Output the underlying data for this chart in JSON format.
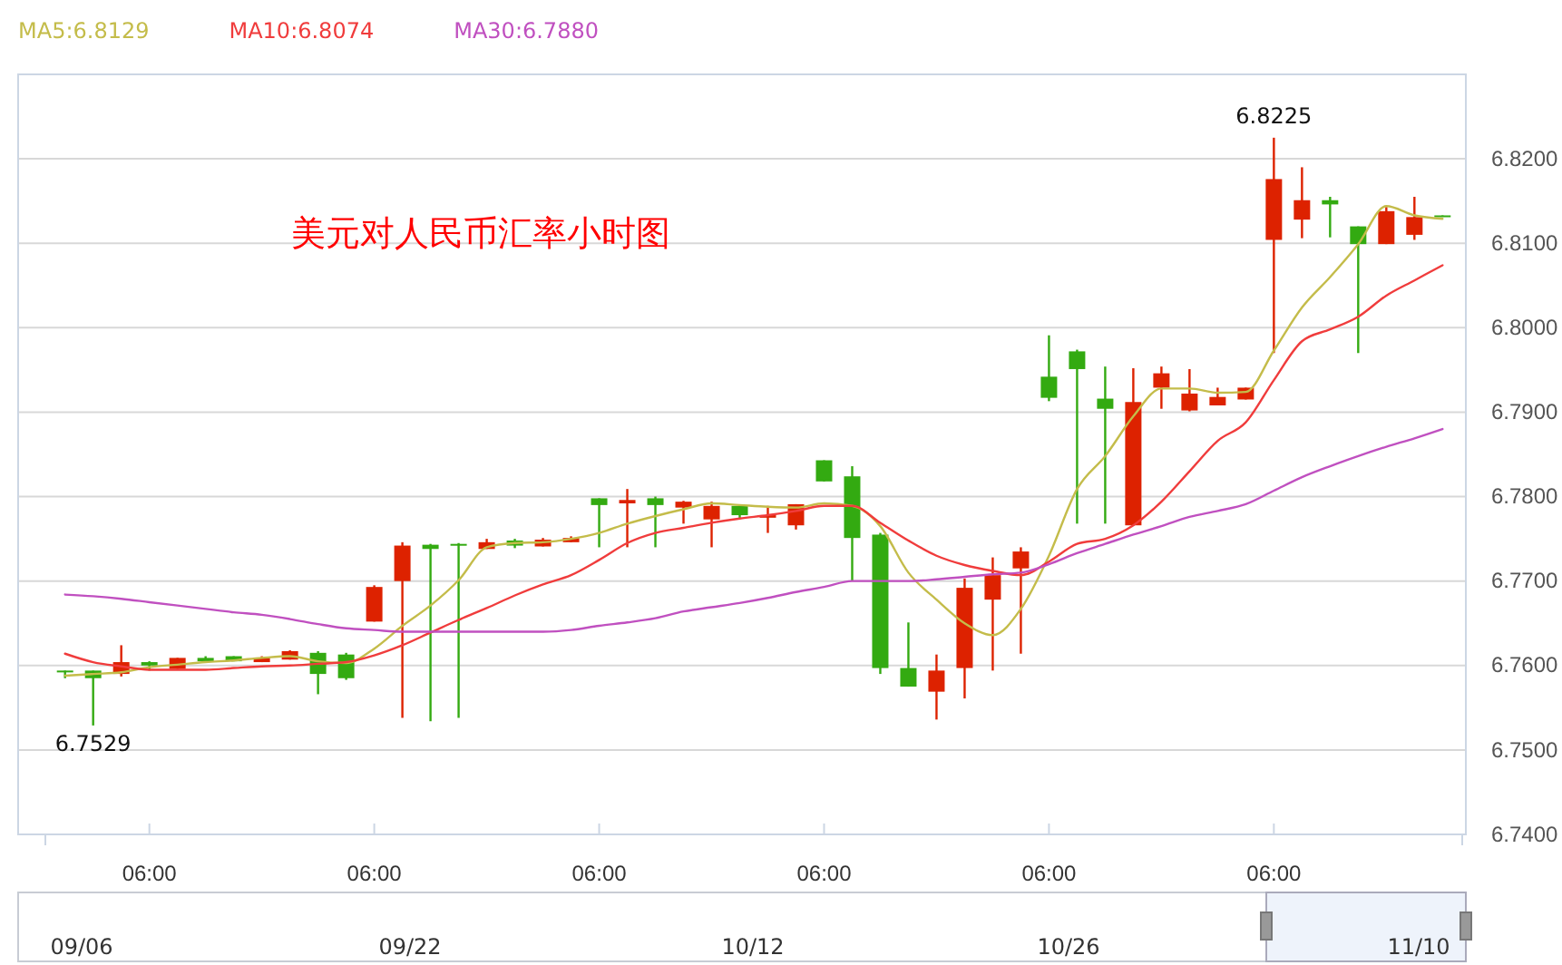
{
  "chart_data": {
    "type": "candlestick",
    "title": "美元对人民币汇率小时图",
    "categories": [
      null,
      null,
      null,
      "06:00",
      null,
      null,
      null,
      null,
      null,
      null,
      null,
      "06:00",
      null,
      null,
      null,
      null,
      null,
      null,
      null,
      "06:00",
      null,
      null,
      null,
      null,
      null,
      null,
      null,
      "06:00",
      null,
      null,
      null,
      null,
      null,
      null,
      null,
      "06:00",
      null,
      null,
      null,
      null,
      null,
      null,
      null,
      "06:00",
      null,
      null,
      null,
      null,
      null,
      null
    ],
    "ohlc": [
      [
        6.7594,
        6.7594,
        6.7585,
        6.7592
      ],
      [
        6.7594,
        6.7594,
        6.7529,
        6.7585
      ],
      [
        6.759,
        6.7624,
        6.7587,
        6.7604
      ],
      [
        6.7604,
        6.7605,
        6.7594,
        6.76
      ],
      [
        6.7596,
        6.7609,
        6.7596,
        6.7609
      ],
      [
        6.7609,
        6.7611,
        6.7603,
        6.7605
      ],
      [
        6.7611,
        6.7611,
        6.7605,
        6.7605
      ],
      [
        6.7604,
        6.7611,
        6.7604,
        6.7609
      ],
      [
        6.7607,
        6.7618,
        6.7607,
        6.7617
      ],
      [
        6.7615,
        6.7617,
        6.7566,
        6.759
      ],
      [
        6.7613,
        6.7615,
        6.7583,
        6.7585
      ],
      [
        6.7652,
        6.7695,
        6.7652,
        6.7693
      ],
      [
        6.77,
        6.7746,
        6.7538,
        6.7742
      ],
      [
        6.7743,
        6.7744,
        6.7534,
        6.7738
      ],
      [
        6.7744,
        6.7745,
        6.7538,
        6.7743
      ],
      [
        6.7738,
        6.775,
        6.7738,
        6.7746
      ],
      [
        6.7748,
        6.775,
        6.7739,
        6.7742
      ],
      [
        6.7741,
        6.7751,
        6.7741,
        6.7749
      ],
      [
        6.7746,
        6.7753,
        6.7746,
        6.7751
      ],
      [
        6.7798,
        6.7798,
        6.774,
        6.779
      ],
      [
        6.7792,
        6.7809,
        6.774,
        6.7796
      ],
      [
        6.7798,
        6.78,
        6.774,
        6.779
      ],
      [
        6.7787,
        6.7795,
        6.7768,
        6.7794
      ],
      [
        6.7773,
        6.7794,
        6.774,
        6.7789
      ],
      [
        6.7789,
        6.779,
        6.7774,
        6.7778
      ],
      [
        6.7775,
        6.7789,
        6.7757,
        6.7778
      ],
      [
        6.7766,
        6.7791,
        6.7761,
        6.7791
      ],
      [
        6.7843,
        6.7843,
        6.7818,
        6.7818
      ],
      [
        6.7824,
        6.7836,
        6.77,
        6.7751
      ],
      [
        6.7755,
        6.7757,
        6.759,
        6.7597
      ],
      [
        6.7597,
        6.7651,
        6.7575,
        6.7575
      ],
      [
        6.7569,
        6.7613,
        6.7536,
        6.7594
      ],
      [
        6.7597,
        6.7703,
        6.7561,
        6.7692
      ],
      [
        6.7678,
        6.7728,
        6.7594,
        6.7707
      ],
      [
        6.7715,
        6.774,
        6.7614,
        6.7735
      ],
      [
        6.7942,
        6.7991,
        6.7913,
        6.7917
      ],
      [
        6.7972,
        6.7974,
        6.7768,
        6.7951
      ],
      [
        6.7916,
        6.7954,
        6.7768,
        6.7904
      ],
      [
        6.7766,
        6.7952,
        6.7766,
        6.7912
      ],
      [
        6.7929,
        6.7954,
        6.7904,
        6.7946
      ],
      [
        6.7902,
        6.7951,
        6.7901,
        6.7922
      ],
      [
        6.7908,
        6.7929,
        6.7908,
        6.7918
      ],
      [
        6.7915,
        6.7929,
        6.7915,
        6.7929
      ],
      [
        6.8104,
        6.8225,
        6.797,
        6.8176
      ],
      [
        6.8128,
        6.819,
        6.8106,
        6.8151
      ],
      [
        6.8151,
        6.8155,
        6.8107,
        6.8146
      ],
      [
        6.812,
        6.812,
        6.797,
        6.8099
      ],
      [
        6.8099,
        6.8143,
        6.8099,
        6.8138
      ],
      [
        6.811,
        6.8155,
        6.8104,
        6.8131
      ],
      [
        6.8133,
        6.8133,
        6.8132,
        6.8132
      ]
    ],
    "colors": [
      "#33aa11",
      "#33aa11",
      "#dd2200",
      "#33aa11",
      "#dd2200",
      "#33aa11",
      "#33aa11",
      "#dd2200",
      "#dd2200",
      "#33aa11",
      "#33aa11",
      "#dd2200",
      "#dd2200",
      "#33aa11",
      "#33aa11",
      "#dd2200",
      "#33aa11",
      "#dd2200",
      "#dd2200",
      "#33aa11",
      "#dd2200",
      "#33aa11",
      "#dd2200",
      "#dd2200",
      "#33aa11",
      "#dd2200",
      "#dd2200",
      "#33aa11",
      "#33aa11",
      "#33aa11",
      "#33aa11",
      "#dd2200",
      "#dd2200",
      "#dd2200",
      "#dd2200",
      "#33aa11",
      "#33aa11",
      "#33aa11",
      "#dd2200",
      "#dd2200",
      "#dd2200",
      "#dd2200",
      "#dd2200",
      "#dd2200",
      "#dd2200",
      "#33aa11",
      "#33aa11",
      "#dd2200",
      "#dd2200",
      "#33aa11"
    ],
    "series": [
      {
        "type": "line",
        "name": "MA5:6.8129",
        "color": "#c4bc4a",
        "values": [
          6.7588,
          6.759,
          6.7592,
          6.7598,
          6.7601,
          6.7604,
          6.7606,
          6.7609,
          6.7611,
          6.7605,
          6.7603,
          6.762,
          6.7647,
          6.7671,
          6.7701,
          6.774,
          6.7745,
          6.7746,
          6.775,
          6.7757,
          6.7768,
          6.7777,
          6.7785,
          6.7792,
          6.779,
          6.7788,
          6.7787,
          6.7792,
          6.7789,
          6.7765,
          6.771,
          6.7678,
          6.765,
          6.7636,
          6.7667,
          6.773,
          6.7809,
          6.7848,
          6.7895,
          6.7928,
          6.7928,
          6.7923,
          6.7924,
          6.7973,
          6.8024,
          6.806,
          6.8099,
          6.8144,
          6.8133,
          6.8129
        ]
      },
      {
        "type": "line",
        "name": "MA10:6.8074",
        "color": "#f03c3c",
        "values": [
          6.7614,
          6.7604,
          6.7599,
          6.7595,
          6.7595,
          6.7595,
          6.7597,
          6.7599,
          6.76,
          6.7602,
          6.7604,
          6.7612,
          6.7624,
          6.7639,
          6.7654,
          6.7668,
          6.7683,
          6.7696,
          6.7707,
          6.7725,
          6.7745,
          6.7757,
          6.7763,
          6.7769,
          6.7774,
          6.7778,
          6.7783,
          6.7789,
          6.7789,
          6.7769,
          6.7748,
          6.773,
          6.7719,
          6.7712,
          6.7707,
          6.7723,
          6.7744,
          6.775,
          6.7766,
          6.7794,
          6.783,
          6.7866,
          6.7888,
          6.7938,
          6.7984,
          6.7998,
          6.8013,
          6.8038,
          6.8056,
          6.8074
        ]
      },
      {
        "type": "line",
        "name": "MA30:6.7880",
        "color": "#c050c0",
        "values": [
          6.7684,
          6.7682,
          6.7679,
          6.7675,
          6.7671,
          6.7667,
          6.7663,
          6.766,
          6.7655,
          6.7649,
          6.7644,
          6.7642,
          6.764,
          6.764,
          6.764,
          6.764,
          6.764,
          6.764,
          6.7642,
          6.7647,
          6.7651,
          6.7656,
          6.7664,
          6.7669,
          6.7674,
          6.768,
          6.7687,
          6.7693,
          6.77,
          6.77,
          6.77,
          6.7702,
          6.7705,
          6.7708,
          6.771,
          6.772,
          6.7733,
          6.7744,
          6.7755,
          6.7765,
          6.7776,
          6.7783,
          6.7791,
          6.7807,
          6.7823,
          6.7836,
          6.7848,
          6.7859,
          6.7869,
          6.788
        ]
      }
    ],
    "ylim": [
      6.74,
      6.83
    ],
    "yticks": [
      {
        "value": 6.74,
        "label": "6.7400"
      },
      {
        "value": 6.75,
        "label": "6.7500"
      },
      {
        "value": 6.76,
        "label": "6.7600"
      },
      {
        "value": 6.77,
        "label": "6.7700"
      },
      {
        "value": 6.78,
        "label": "6.7800"
      },
      {
        "value": 6.79,
        "label": "6.7900"
      },
      {
        "value": 6.8,
        "label": "6.8000"
      },
      {
        "value": 6.81,
        "label": "6.8100"
      },
      {
        "value": 6.82,
        "label": "6.8200"
      }
    ],
    "grid": "y",
    "legend": "top left",
    "annotations": [
      {
        "text": "6.7529",
        "y": 6.7529
      },
      {
        "text": "6.8225",
        "y": 6.8225
      },
      "09/06",
      "09/22",
      "10/12",
      "10/26",
      "11/10"
    ]
  }
}
